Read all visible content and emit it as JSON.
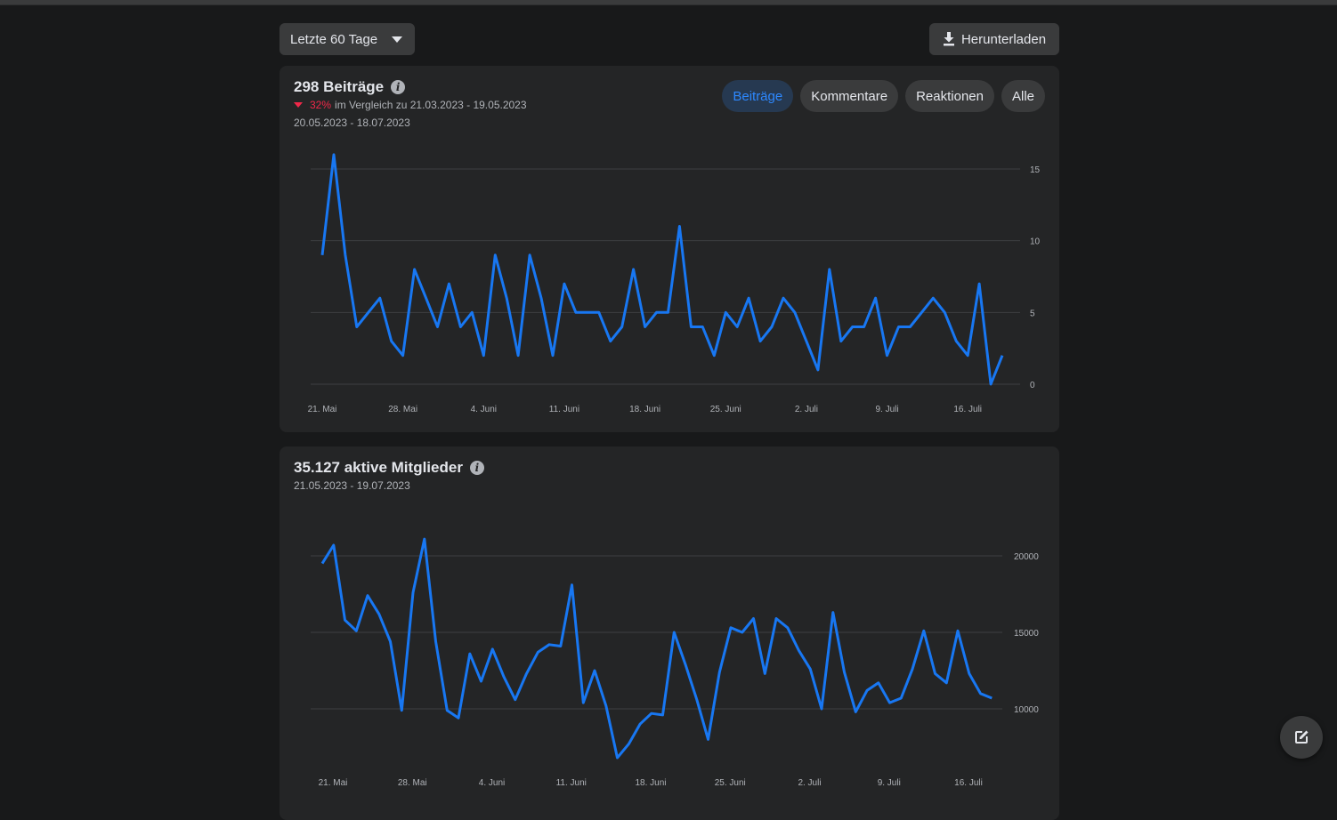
{
  "toolbar": {
    "period_label": "Letzte 60 Tage",
    "download_label": "Herunterladen"
  },
  "posts_card": {
    "title": "298 Beiträge",
    "change_pct": "32%",
    "compare_text": "im Vergleich zu 21.03.2023 - 19.05.2023",
    "date_range": "20.05.2023 - 18.07.2023",
    "tabs": [
      {
        "label": "Beiträge",
        "active": true
      },
      {
        "label": "Kommentare",
        "active": false
      },
      {
        "label": "Reaktionen",
        "active": false
      },
      {
        "label": "Alle",
        "active": false
      }
    ]
  },
  "members_card": {
    "title": "35.127 aktive Mitglieder",
    "date_range": "21.05.2023 - 19.07.2023"
  },
  "colors": {
    "line": "#1877f2",
    "negative": "#f02849",
    "active_tab_text": "#2d88ff"
  },
  "chart_data": [
    {
      "type": "line",
      "x_ticks": [
        "21. Mai",
        "28. Mai",
        "4. Juni",
        "11. Juni",
        "18. Juni",
        "25. Juni",
        "2. Juli",
        "9. Juli",
        "16. Juli"
      ],
      "y_ticks": [
        0,
        5,
        10,
        15
      ],
      "ylim": [
        0,
        15
      ],
      "grid": true,
      "series": [
        {
          "values": [
            9,
            16,
            9,
            4,
            5,
            6,
            3,
            2,
            8,
            6,
            4,
            7,
            4,
            5,
            2,
            9,
            6,
            2,
            9,
            6,
            2,
            7,
            5,
            5,
            5,
            3,
            4,
            8,
            4,
            5,
            5,
            11,
            4,
            4,
            2,
            5,
            4,
            6,
            3,
            4,
            6,
            5,
            3,
            1,
            8,
            3,
            4,
            4,
            6,
            2,
            4,
            4,
            5,
            6,
            5,
            3,
            2,
            7,
            0,
            2
          ]
        }
      ]
    },
    {
      "type": "line",
      "x_ticks": [
        "21. Mai",
        "28. Mai",
        "4. Juni",
        "11. Juni",
        "18. Juni",
        "25. Juni",
        "2. Juli",
        "9. Juli",
        "16. Juli"
      ],
      "y_ticks": [
        10000,
        15000,
        20000
      ],
      "ylim": [
        10000,
        20000
      ],
      "grid": true,
      "series": [
        {
          "values": [
            19500,
            20700,
            15800,
            15100,
            17400,
            16200,
            14400,
            9900,
            17600,
            21100,
            14400,
            9900,
            9400,
            13600,
            11800,
            13900,
            12100,
            10600,
            12300,
            13700,
            14200,
            14100,
            18100,
            10400,
            12500,
            10200,
            6800,
            7700,
            9000,
            9700,
            9600,
            15000,
            12900,
            10600,
            8000,
            12400,
            15300,
            15000,
            15900,
            12300,
            15900,
            15300,
            13800,
            12600,
            10000,
            16300,
            12400,
            9800,
            11200,
            11700,
            10400,
            10700,
            12600,
            15100,
            12300,
            11700,
            15100,
            12300,
            11000,
            10700
          ]
        }
      ]
    }
  ]
}
